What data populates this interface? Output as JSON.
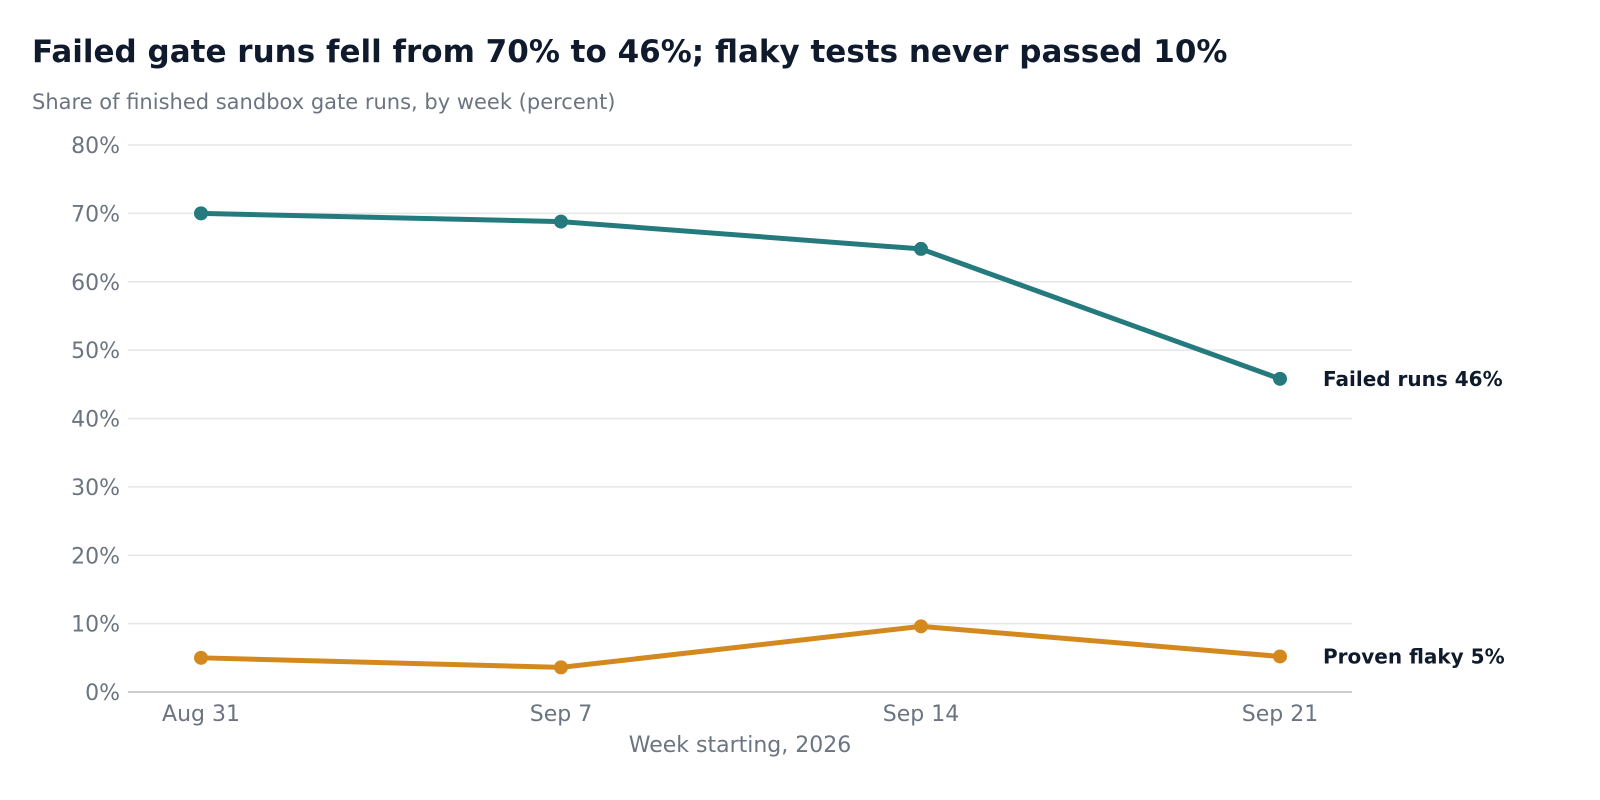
{
  "chart_data": {
    "type": "line",
    "title": "Failed gate runs fell from 70% to 46%; flaky tests never passed 10%",
    "subtitle": "Share of finished sandbox gate runs, by week (percent)",
    "xlabel": "Week starting, 2026",
    "ylabel": "",
    "categories": [
      "Aug 31",
      "Sep 7",
      "Sep 14",
      "Sep 21"
    ],
    "ylim": [
      0,
      80
    ],
    "yticks": [
      0,
      10,
      20,
      30,
      40,
      50,
      60,
      70,
      80
    ],
    "ytick_labels": [
      "0%",
      "10%",
      "20%",
      "30%",
      "40%",
      "50%",
      "60%",
      "70%",
      "80%"
    ],
    "grid": true,
    "series": [
      {
        "name": "Failed runs",
        "values": [
          70,
          68.8,
          64.8,
          45.8
        ],
        "color": "#257a7e",
        "end_label": "Failed runs  46%"
      },
      {
        "name": "Proven flaky",
        "values": [
          5,
          3.6,
          9.6,
          5.2
        ],
        "color": "#d4891f",
        "end_label": "Proven flaky  5%"
      }
    ]
  }
}
